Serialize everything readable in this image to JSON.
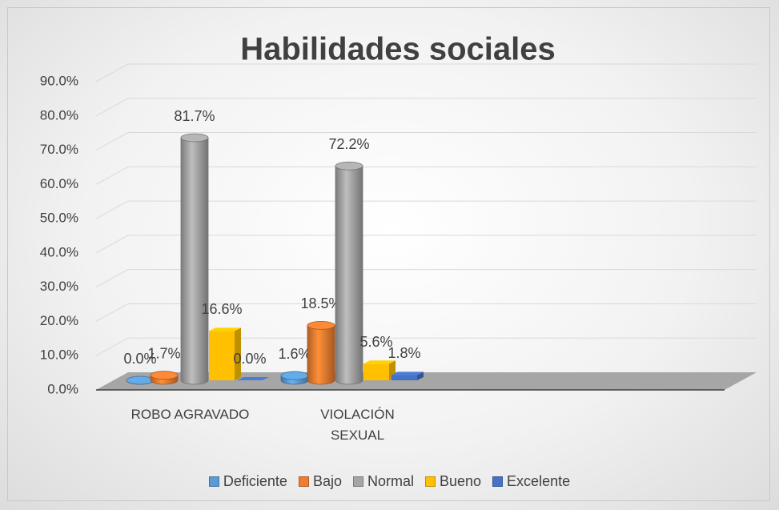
{
  "chart_data": {
    "type": "bar3d",
    "title": "Habilidades sociales",
    "categories": [
      "ROBO AGRAVADO",
      "VIOLACIÓN SEXUAL"
    ],
    "series": [
      {
        "name": "Deficiente",
        "color": "#5b9bd5",
        "values": [
          0.0,
          1.6
        ],
        "value_labels": [
          "0.0%",
          "1.6%"
        ]
      },
      {
        "name": "Bajo",
        "color": "#ed7d31",
        "values": [
          1.7,
          18.5
        ],
        "value_labels": [
          "1.7%",
          "18.5%"
        ]
      },
      {
        "name": "Normal",
        "color": "#a5a5a5",
        "values": [
          81.7,
          72.2
        ],
        "value_labels": [
          "81.7%",
          "72.2%"
        ]
      },
      {
        "name": "Bueno",
        "color": "#ffc000",
        "values": [
          16.6,
          5.6
        ],
        "value_labels": [
          "16.6%",
          "5.6%"
        ]
      },
      {
        "name": "Excelente",
        "color": "#4472c4",
        "values": [
          0.0,
          1.8
        ],
        "value_labels": [
          "0.0%",
          "1.8%"
        ]
      }
    ],
    "ylim": [
      0,
      90
    ],
    "yticks": [
      {
        "value": 0,
        "label": "0.0%"
      },
      {
        "value": 10,
        "label": "10.0%"
      },
      {
        "value": 20,
        "label": "20.0%"
      },
      {
        "value": 30,
        "label": "30.0%"
      },
      {
        "value": 40,
        "label": "40.0%"
      },
      {
        "value": 50,
        "label": "50.0%"
      },
      {
        "value": 60,
        "label": "60.0%"
      },
      {
        "value": 70,
        "label": "70.0%"
      },
      {
        "value": 80,
        "label": "80.0%"
      },
      {
        "value": 90,
        "label": "90.0%"
      }
    ],
    "grid": true,
    "legend": "bottom"
  }
}
